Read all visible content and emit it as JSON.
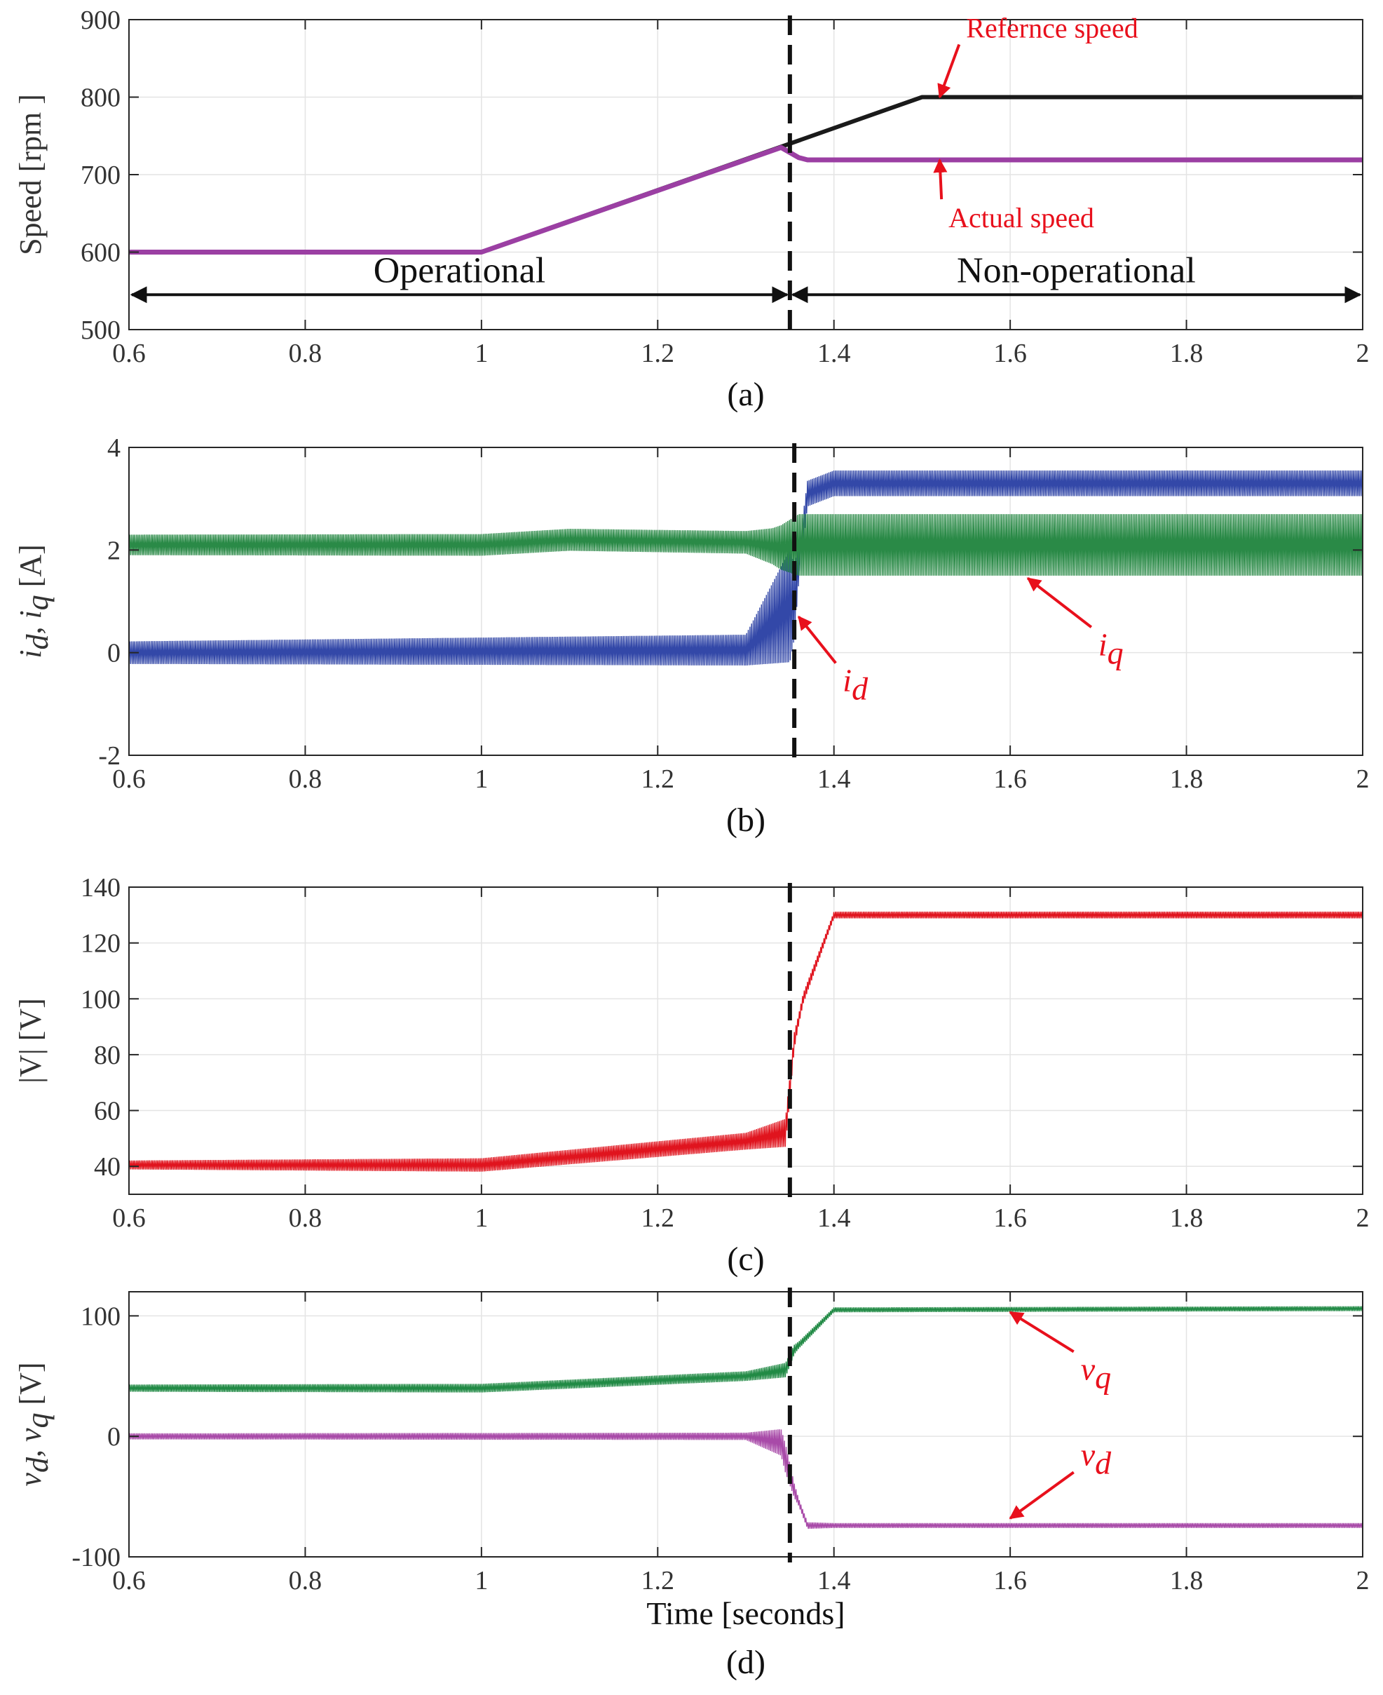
{
  "chart_data": [
    {
      "id": "a",
      "type": "line",
      "caption": "(a)",
      "ylabel": "Speed [rpm ]",
      "xlabel": "",
      "xlim": [
        0.6,
        2
      ],
      "ylim": [
        500,
        900
      ],
      "xticks": [
        0.6,
        0.8,
        1,
        1.2,
        1.4,
        1.6,
        1.8,
        2
      ],
      "xtick_labels": [
        "0.6",
        "0.8",
        "1",
        "1.2",
        "1.4",
        "1.6",
        "1.8",
        "2"
      ],
      "yticks": [
        500,
        600,
        700,
        800,
        900
      ],
      "ytick_labels": [
        "500",
        "600",
        "700",
        "800",
        "900"
      ],
      "grid": true,
      "vline_x": 1.35,
      "series": [
        {
          "name": "Refernce speed",
          "color": "#1a1a1a",
          "x": [
            0.6,
            1.0,
            1.5,
            2.0
          ],
          "y": [
            600,
            600,
            800,
            800
          ]
        },
        {
          "name": "Actual speed",
          "color": "#9b3fa3",
          "x": [
            0.6,
            1.0,
            1.34,
            1.36,
            1.37,
            2.0
          ],
          "y": [
            600,
            600,
            735,
            722,
            719,
            719
          ]
        }
      ],
      "annotations": [
        {
          "text": "Refernce speed",
          "x": 1.55,
          "y": 877,
          "arrow_to": [
            1.52,
            800
          ]
        },
        {
          "text": "Actual speed",
          "x": 1.53,
          "y": 632,
          "arrow_to": [
            1.52,
            719
          ]
        }
      ],
      "regions": [
        {
          "label": "Operational",
          "from": 0.6,
          "to": 1.35,
          "y": 545
        },
        {
          "label": "Non-operational",
          "from": 1.35,
          "to": 2.0,
          "y": 545
        }
      ]
    },
    {
      "id": "b",
      "type": "line",
      "caption": "(b)",
      "ylabel_parts": [
        "i",
        "d",
        ", ",
        "i",
        "q",
        " [A]"
      ],
      "xlabel": "",
      "xlim": [
        0.6,
        2
      ],
      "ylim": [
        -2,
        4
      ],
      "xticks": [
        0.6,
        0.8,
        1,
        1.2,
        1.4,
        1.6,
        1.8,
        2
      ],
      "xtick_labels": [
        "0.6",
        "0.8",
        "1",
        "1.2",
        "1.4",
        "1.6",
        "1.8",
        "2"
      ],
      "yticks": [
        -2,
        0,
        2,
        4
      ],
      "ytick_labels": [
        "-2",
        "0",
        "2",
        "4"
      ],
      "grid": true,
      "vline_x": 1.355,
      "series": [
        {
          "name": "i_d",
          "color": "#3348a8",
          "mean": [
            [
              0.6,
              0.0
            ],
            [
              1.3,
              0.05
            ],
            [
              1.355,
              1.0
            ],
            [
              1.37,
              3.1
            ],
            [
              1.4,
              3.3
            ],
            [
              2.0,
              3.3
            ]
          ],
          "ripple": [
            [
              0.6,
              0.22
            ],
            [
              1.3,
              0.3
            ],
            [
              1.35,
              1.1
            ],
            [
              1.36,
              0.35
            ],
            [
              1.37,
              0.25
            ],
            [
              2.0,
              0.25
            ]
          ]
        },
        {
          "name": "i_q",
          "color": "#2a8a47",
          "mean": [
            [
              0.6,
              2.1
            ],
            [
              1.0,
              2.1
            ],
            [
              1.1,
              2.2
            ],
            [
              1.3,
              2.15
            ],
            [
              1.34,
              2.05
            ],
            [
              1.36,
              2.1
            ],
            [
              2.0,
              2.1
            ]
          ],
          "ripple": [
            [
              0.6,
              0.2
            ],
            [
              1.3,
              0.22
            ],
            [
              1.33,
              0.35
            ],
            [
              1.36,
              0.6
            ],
            [
              1.4,
              0.6
            ],
            [
              2.0,
              0.6
            ]
          ]
        }
      ],
      "annotations": [
        {
          "text": "i",
          "sub": "d",
          "x": 1.41,
          "y": -0.75,
          "arrow_to": [
            1.36,
            0.7
          ]
        },
        {
          "text": "i",
          "sub": "q",
          "x": 1.7,
          "y": -0.05,
          "arrow_to": [
            1.62,
            1.45
          ]
        }
      ]
    },
    {
      "id": "c",
      "type": "line",
      "caption": "(c)",
      "ylabel": "|V| [V]",
      "xlabel": "",
      "xlim": [
        0.6,
        2
      ],
      "ylim": [
        30,
        140
      ],
      "xticks": [
        0.6,
        0.8,
        1,
        1.2,
        1.4,
        1.6,
        1.8,
        2
      ],
      "xtick_labels": [
        "0.6",
        "0.8",
        "1",
        "1.2",
        "1.4",
        "1.6",
        "1.8",
        "2"
      ],
      "yticks": [
        40,
        60,
        80,
        100,
        120,
        140
      ],
      "ytick_labels": [
        "40",
        "60",
        "80",
        "100",
        "120",
        "140"
      ],
      "grid": true,
      "vline_x": 1.35,
      "series": [
        {
          "name": "|V|",
          "color": "#e0141e",
          "mean": [
            [
              0.6,
              40.5
            ],
            [
              1.0,
              40.5
            ],
            [
              1.3,
              49
            ],
            [
              1.345,
              52
            ],
            [
              1.355,
              85
            ],
            [
              1.365,
              100
            ],
            [
              1.4,
              130
            ],
            [
              2.0,
              130
            ]
          ],
          "ripple": [
            [
              0.6,
              1.6
            ],
            [
              1.3,
              3.0
            ],
            [
              1.345,
              5.0
            ],
            [
              1.36,
              2.0
            ],
            [
              1.4,
              1.2
            ],
            [
              2.0,
              1.2
            ]
          ]
        }
      ],
      "annotations": []
    },
    {
      "id": "d",
      "type": "line",
      "caption": "(d)",
      "ylabel_parts": [
        "v",
        "d",
        ", ",
        "v",
        "q",
        " [V]"
      ],
      "xlabel": "Time [seconds]",
      "xlim": [
        0.6,
        2
      ],
      "ylim": [
        -100,
        120
      ],
      "xticks": [
        0.6,
        0.8,
        1,
        1.2,
        1.4,
        1.6,
        1.8,
        2
      ],
      "xtick_labels": [
        "0.6",
        "0.8",
        "1",
        "1.2",
        "1.4",
        "1.6",
        "1.8",
        "2"
      ],
      "yticks": [
        -100,
        0,
        100
      ],
      "ytick_labels": [
        "-100",
        "0",
        "100"
      ],
      "grid": true,
      "vline_x": 1.35,
      "series": [
        {
          "name": "v_q",
          "color": "#218a45",
          "mean": [
            [
              0.6,
              40
            ],
            [
              1.0,
              40
            ],
            [
              1.3,
              50
            ],
            [
              1.345,
              55
            ],
            [
              1.355,
              72
            ],
            [
              1.4,
              105
            ],
            [
              2.0,
              106
            ]
          ],
          "ripple": [
            [
              0.6,
              3
            ],
            [
              1.3,
              4
            ],
            [
              1.345,
              6
            ],
            [
              1.36,
              3
            ],
            [
              1.4,
              2
            ],
            [
              2.0,
              2
            ]
          ]
        },
        {
          "name": "v_d",
          "color": "#a84aa8",
          "mean": [
            [
              0.6,
              0
            ],
            [
              1.3,
              0
            ],
            [
              1.34,
              -5
            ],
            [
              1.355,
              -45
            ],
            [
              1.37,
              -74
            ],
            [
              2.0,
              -74
            ]
          ],
          "ripple": [
            [
              0.6,
              2.5
            ],
            [
              1.3,
              3
            ],
            [
              1.345,
              12
            ],
            [
              1.36,
              3
            ],
            [
              1.4,
              2
            ],
            [
              2.0,
              2
            ]
          ]
        }
      ],
      "annotations": [
        {
          "text": "v",
          "sub": "q",
          "x": 1.68,
          "y": 47,
          "arrow_to": [
            1.6,
            103
          ]
        },
        {
          "text": "v",
          "sub": "d",
          "x": 1.68,
          "y": -24,
          "arrow_to": [
            1.6,
            -68
          ]
        }
      ]
    }
  ]
}
